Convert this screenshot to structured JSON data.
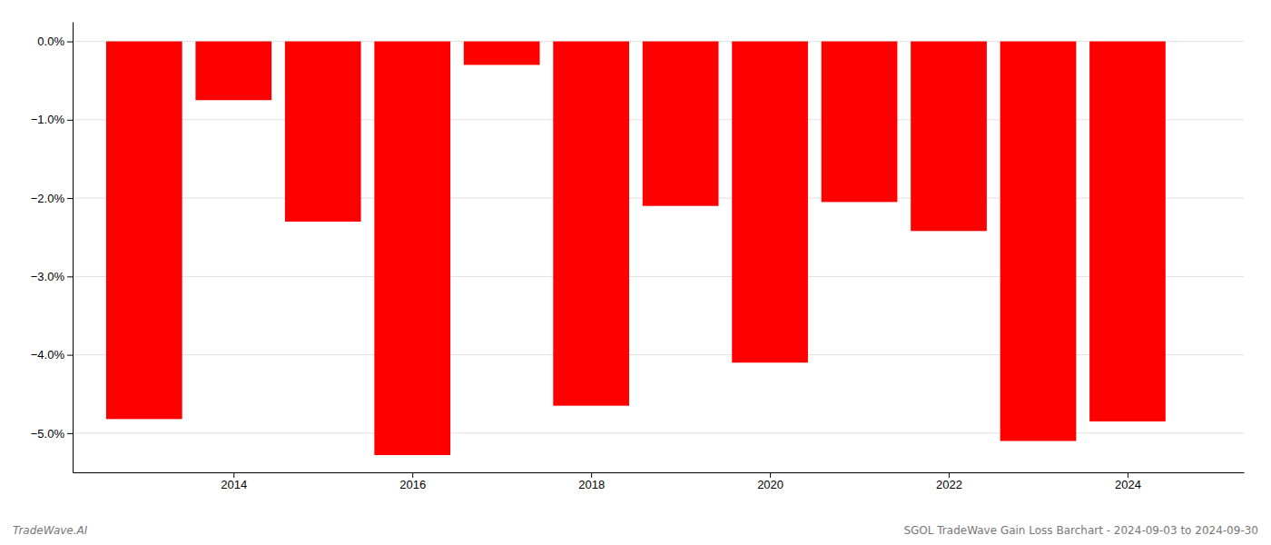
{
  "chart_data": {
    "type": "bar",
    "x": [
      2013,
      2014,
      2015,
      2016,
      2017,
      2018,
      2019,
      2020,
      2021,
      2022,
      2023,
      2024
    ],
    "values": [
      -4.82,
      -0.75,
      -2.3,
      -5.28,
      -0.3,
      -4.65,
      -2.1,
      -4.1,
      -2.05,
      -2.42,
      -5.1,
      -4.85
    ],
    "color": "#ff0000",
    "xlim": [
      2012.2,
      2025.3
    ],
    "xticks": [
      2014,
      2016,
      2018,
      2020,
      2022,
      2024
    ],
    "ylim": [
      -5.5,
      0.25
    ],
    "yticks": [
      {
        "value": 0.0,
        "label": "0.0%"
      },
      {
        "value": -1.0,
        "label": "−1.0%"
      },
      {
        "value": -2.0,
        "label": "−2.0%"
      },
      {
        "value": -3.0,
        "label": "−3.0%"
      },
      {
        "value": -4.0,
        "label": "−4.0%"
      },
      {
        "value": -5.0,
        "label": "−5.0%"
      }
    ],
    "grid": "y",
    "annotations": [
      "TradeWave.AI",
      "SGOL TradeWave Gain Loss Barchart - 2024-09-03 to 2024-09-30"
    ]
  }
}
